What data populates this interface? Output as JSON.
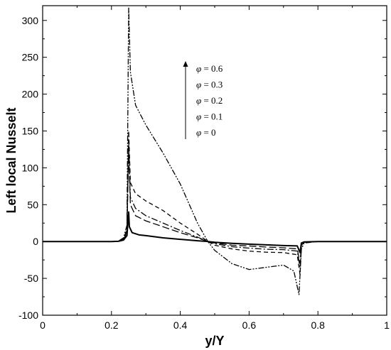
{
  "chart_data": {
    "type": "line",
    "title": "",
    "xlabel": "y/Y",
    "ylabel": "Left local Nusselt",
    "xlim": [
      0,
      1
    ],
    "ylim": [
      -100,
      320
    ],
    "x_ticks": [
      "0",
      "0.2",
      "0.4",
      "0.6",
      "0.8",
      "1"
    ],
    "y_ticks": [
      "-100",
      "-50",
      "0",
      "50",
      "100",
      "150",
      "200",
      "250",
      "300"
    ],
    "grid": false,
    "legend": {
      "placement": "top-center",
      "entries": [
        "φ = 0.6",
        "φ = 0.3",
        "φ = 0.2",
        "φ = 0.1",
        "φ = 0"
      ],
      "arrow": "upward"
    },
    "series": [
      {
        "name": "φ = 0",
        "dash": "solid",
        "points": [
          [
            0,
            0
          ],
          [
            0.2,
            0
          ],
          [
            0.22,
            0.3
          ],
          [
            0.235,
            2
          ],
          [
            0.245,
            8
          ],
          [
            0.25,
            40
          ],
          [
            0.252,
            20
          ],
          [
            0.26,
            12
          ],
          [
            0.28,
            9
          ],
          [
            0.3,
            8
          ],
          [
            0.35,
            5
          ],
          [
            0.4,
            3
          ],
          [
            0.45,
            1
          ],
          [
            0.48,
            0
          ],
          [
            0.5,
            -1
          ],
          [
            0.55,
            -2.5
          ],
          [
            0.6,
            -3.5
          ],
          [
            0.65,
            -4.5
          ],
          [
            0.7,
            -5.5
          ],
          [
            0.74,
            -6
          ],
          [
            0.748,
            -15
          ],
          [
            0.752,
            -2
          ],
          [
            0.76,
            -0.5
          ],
          [
            0.8,
            0
          ],
          [
            1,
            0
          ]
        ]
      },
      {
        "name": "φ = 0.1",
        "dash": "long-dash",
        "points": [
          [
            0,
            0
          ],
          [
            0.2,
            0
          ],
          [
            0.22,
            0.3
          ],
          [
            0.235,
            3
          ],
          [
            0.245,
            12
          ],
          [
            0.25,
            125
          ],
          [
            0.255,
            50
          ],
          [
            0.27,
            35
          ],
          [
            0.3,
            28
          ],
          [
            0.35,
            20
          ],
          [
            0.4,
            12
          ],
          [
            0.45,
            5
          ],
          [
            0.48,
            0
          ],
          [
            0.5,
            -2
          ],
          [
            0.55,
            -5
          ],
          [
            0.6,
            -6
          ],
          [
            0.65,
            -7.5
          ],
          [
            0.7,
            -8.5
          ],
          [
            0.74,
            -10
          ],
          [
            0.748,
            -30
          ],
          [
            0.752,
            -5
          ],
          [
            0.76,
            -1
          ],
          [
            0.8,
            0
          ],
          [
            1,
            0
          ]
        ]
      },
      {
        "name": "φ = 0.2",
        "dash": "dash-dot",
        "points": [
          [
            0,
            0
          ],
          [
            0.2,
            0
          ],
          [
            0.22,
            0.3
          ],
          [
            0.235,
            3
          ],
          [
            0.245,
            14
          ],
          [
            0.25,
            135
          ],
          [
            0.255,
            60
          ],
          [
            0.27,
            45
          ],
          [
            0.3,
            35
          ],
          [
            0.35,
            25
          ],
          [
            0.4,
            15
          ],
          [
            0.45,
            6
          ],
          [
            0.48,
            0
          ],
          [
            0.5,
            -3
          ],
          [
            0.55,
            -7
          ],
          [
            0.6,
            -9
          ],
          [
            0.65,
            -10.5
          ],
          [
            0.7,
            -11
          ],
          [
            0.74,
            -13
          ],
          [
            0.748,
            -35
          ],
          [
            0.752,
            -5
          ],
          [
            0.76,
            -1
          ],
          [
            0.8,
            0
          ],
          [
            1,
            0
          ]
        ]
      },
      {
        "name": "φ = 0.3",
        "dash": "dash",
        "points": [
          [
            0,
            0
          ],
          [
            0.2,
            0
          ],
          [
            0.22,
            0.3
          ],
          [
            0.235,
            4
          ],
          [
            0.245,
            16
          ],
          [
            0.25,
            150
          ],
          [
            0.255,
            80
          ],
          [
            0.27,
            65
          ],
          [
            0.3,
            55
          ],
          [
            0.35,
            42
          ],
          [
            0.4,
            25
          ],
          [
            0.45,
            10
          ],
          [
            0.48,
            0
          ],
          [
            0.5,
            -5
          ],
          [
            0.55,
            -10
          ],
          [
            0.6,
            -13
          ],
          [
            0.65,
            -14.5
          ],
          [
            0.7,
            -15
          ],
          [
            0.74,
            -18
          ],
          [
            0.748,
            -45
          ],
          [
            0.752,
            -6
          ],
          [
            0.76,
            -1
          ],
          [
            0.8,
            0
          ],
          [
            1,
            0
          ]
        ]
      },
      {
        "name": "φ = 0.6",
        "dash": "dash-dot-dot",
        "points": [
          [
            0,
            0
          ],
          [
            0.2,
            0
          ],
          [
            0.22,
            0.5
          ],
          [
            0.235,
            5
          ],
          [
            0.245,
            22
          ],
          [
            0.25,
            318
          ],
          [
            0.255,
            230
          ],
          [
            0.27,
            185
          ],
          [
            0.3,
            158
          ],
          [
            0.35,
            120
          ],
          [
            0.4,
            78
          ],
          [
            0.45,
            25
          ],
          [
            0.48,
            0
          ],
          [
            0.5,
            -12
          ],
          [
            0.55,
            -30
          ],
          [
            0.6,
            -38
          ],
          [
            0.65,
            -35
          ],
          [
            0.7,
            -32
          ],
          [
            0.73,
            -40
          ],
          [
            0.745,
            -72
          ],
          [
            0.752,
            -10
          ],
          [
            0.76,
            -2
          ],
          [
            0.8,
            0
          ],
          [
            1,
            0
          ]
        ]
      }
    ]
  }
}
